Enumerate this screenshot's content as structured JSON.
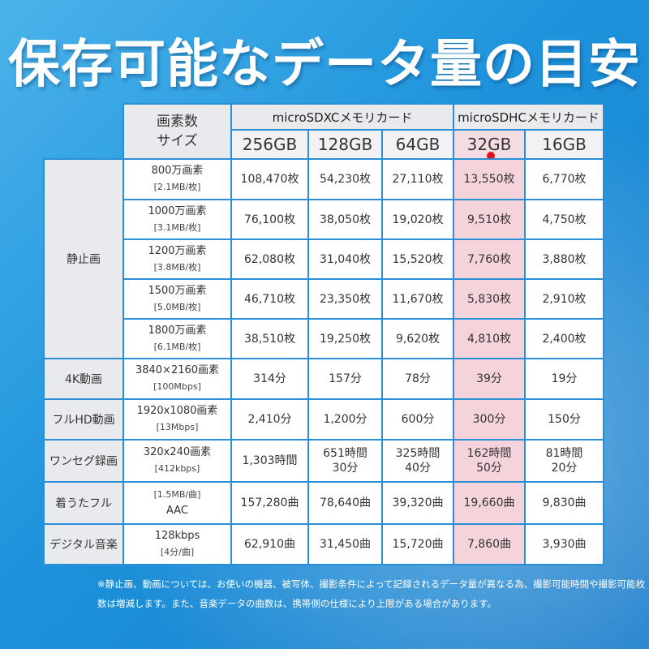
{
  "title": "保存可能なデータ量の目安",
  "header": {
    "pixel_label_line1": "画素数",
    "pixel_label_line2": "サイズ",
    "group_sdxc": "microSDXCメモリカード",
    "group_sdhc": "microSDHCメモリカード",
    "capacities": [
      "256GB",
      "128GB",
      "64GB",
      "32GB",
      "16GB"
    ]
  },
  "categories": {
    "still": "静止画",
    "k4": "4K動画",
    "fullhd": "フルHD動画",
    "oneseg": "ワンセグ録画",
    "chaku": "着うたフル",
    "music": "デジタル音楽"
  },
  "rows": [
    {
      "res": "800万画素",
      "sub": "[2.1MB/枚]",
      "values": [
        "108,470枚",
        "54,230枚",
        "27,110枚",
        "13,550枚",
        "6,770枚"
      ]
    },
    {
      "res": "1000万画素",
      "sub": "[3.1MB/枚]",
      "values": [
        "76,100枚",
        "38,050枚",
        "19,020枚",
        "9,510枚",
        "4,750枚"
      ]
    },
    {
      "res": "1200万画素",
      "sub": "[3.8MB/枚]",
      "values": [
        "62,080枚",
        "31,040枚",
        "15,520枚",
        "7,760枚",
        "3,880枚"
      ]
    },
    {
      "res": "1500万画素",
      "sub": "[5.0MB/枚]",
      "values": [
        "46,710枚",
        "23,350枚",
        "11,670枚",
        "5,830枚",
        "2,910枚"
      ]
    },
    {
      "res": "1800万画素",
      "sub": "[6.1MB/枚]",
      "values": [
        "38,510枚",
        "19,250枚",
        "9,620枚",
        "4,810枚",
        "2,400枚"
      ]
    },
    {
      "res": "3840×2160画素",
      "sub": "[100Mbps]",
      "values": [
        "314分",
        "157分",
        "78分",
        "39分",
        "19分"
      ]
    },
    {
      "res": "1920x1080画素",
      "sub": "[13Mbps]",
      "values": [
        "2,410分",
        "1,200分",
        "600分",
        "300分",
        "150分"
      ]
    },
    {
      "res": "320x240画素",
      "sub": "[412kbps]",
      "values": [
        "1,303時間",
        "651時間",
        "325時間",
        "162時間",
        "81時間"
      ],
      "values2": [
        "",
        "30分",
        "40分",
        "50分",
        "20分"
      ]
    },
    {
      "res": "[1.5MB/曲]",
      "sub": "AAC",
      "values": [
        "157,280曲",
        "78,640曲",
        "39,320曲",
        "19,660曲",
        "9,830曲"
      ]
    },
    {
      "res": "128kbps",
      "sub": "[4分/曲]",
      "values": [
        "62,910曲",
        "31,450曲",
        "15,720曲",
        "7,860曲",
        "3,930曲"
      ]
    }
  ],
  "note": "※静止画、動画については、お使いの機器、被写体、撮影条件によって記録されるデータ量が異なる為、撮影可能時間や撮影可能枚数は増減します。また、音楽データの曲数は、携帯側の仕様により上限がある場合があります。",
  "colors": {
    "background": "#1e93dc",
    "border": "#2a8fd6",
    "highlight": "#f4d3db"
  }
}
